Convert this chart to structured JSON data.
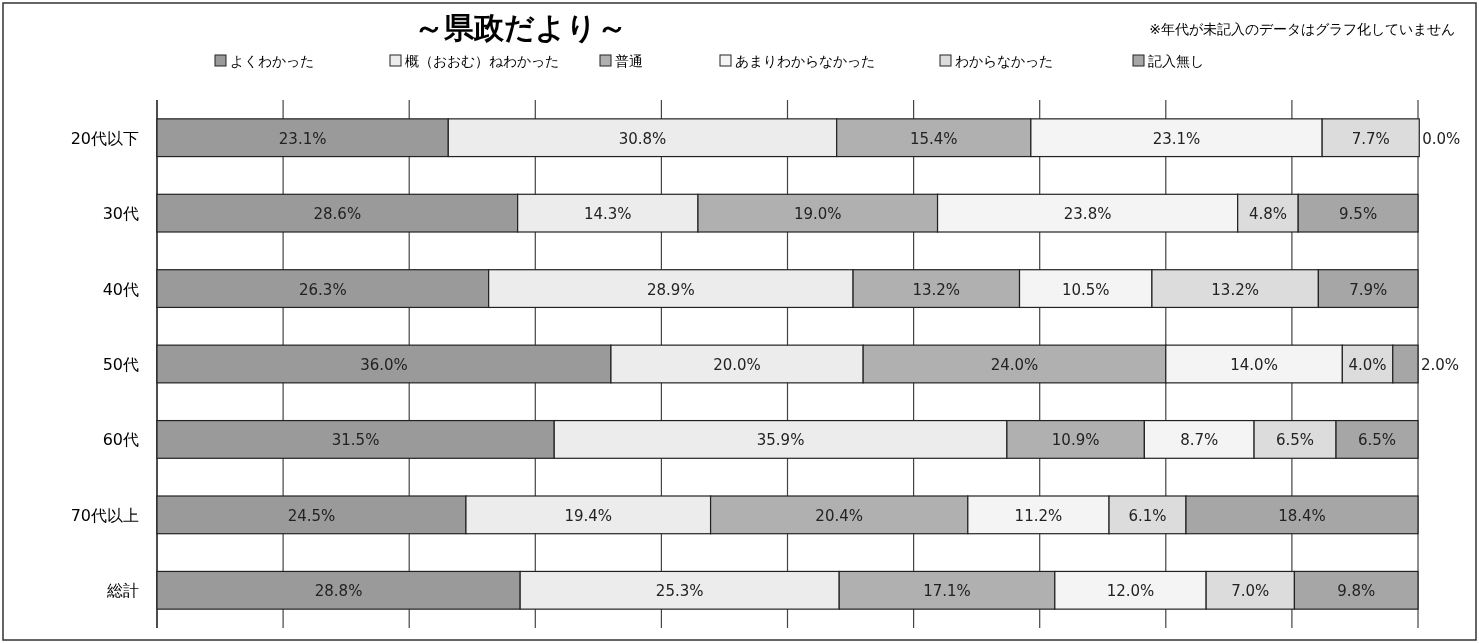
{
  "chart_data": {
    "type": "bar",
    "orientation": "horizontal",
    "stacked": true,
    "title": "～県政だより～",
    "annotations": [
      "※年代が未記入のデータはグラフ化していません"
    ],
    "categories": [
      "20代以下",
      "30代",
      "40代",
      "50代",
      "60代",
      "70代以上",
      "総計"
    ],
    "xlim": [
      0,
      100
    ],
    "xticks": [
      {
        "value": 0,
        "label": null
      },
      {
        "value": 10,
        "label": null
      },
      {
        "value": 20,
        "label": null
      },
      {
        "value": 30,
        "label": null
      },
      {
        "value": 40,
        "label": null
      },
      {
        "value": 50,
        "label": null
      },
      {
        "value": 60,
        "label": null
      },
      {
        "value": 70,
        "label": null
      },
      {
        "value": 80,
        "label": null
      },
      {
        "value": 90,
        "label": null
      },
      {
        "value": 100,
        "label": null
      }
    ],
    "grid": "x",
    "legend": "top",
    "tick_labels": "y",
    "series": [
      {
        "name": "よくわかった",
        "color": "#9a9a9a",
        "values": [
          23.1,
          28.6,
          26.3,
          36.0,
          31.5,
          24.5,
          28.8
        ],
        "value_labels": [
          "23.1%",
          "28.6%",
          "26.3%",
          "36.0%",
          "31.5%",
          "24.5%",
          "28.8%"
        ]
      },
      {
        "name": "概（おおむ）ねわかった",
        "color": "#ececec",
        "values": [
          30.8,
          14.3,
          28.9,
          20.0,
          35.9,
          19.4,
          25.3
        ],
        "value_labels": [
          "30.8%",
          "14.3%",
          "28.9%",
          "20.0%",
          "35.9%",
          "19.4%",
          "25.3%"
        ]
      },
      {
        "name": "普通",
        "color": "#b0b0b0",
        "values": [
          15.4,
          19.0,
          13.2,
          24.0,
          10.9,
          20.4,
          17.1
        ],
        "value_labels": [
          "15.4%",
          "19.0%",
          "13.2%",
          "24.0%",
          "10.9%",
          "20.4%",
          "17.1%"
        ]
      },
      {
        "name": "あまりわからなかった",
        "color": "#f4f4f4",
        "values": [
          23.1,
          23.8,
          10.5,
          14.0,
          8.7,
          11.2,
          12.0
        ],
        "value_labels": [
          "23.1%",
          "23.8%",
          "10.5%",
          "14.0%",
          "8.7%",
          "11.2%",
          "12.0%"
        ]
      },
      {
        "name": "わからなかった",
        "color": "#dcdcdc",
        "values": [
          7.7,
          4.8,
          13.2,
          4.0,
          6.5,
          6.1,
          7.0
        ],
        "value_labels": [
          "7.7%",
          "4.8%",
          "13.2%",
          "4.0%",
          "6.5%",
          "6.1%",
          "7.0%"
        ]
      },
      {
        "name": "記入無し",
        "color": "#a6a6a6",
        "values": [
          0.0,
          9.5,
          7.9,
          2.0,
          6.5,
          18.4,
          9.8
        ],
        "value_labels": [
          "0.0%",
          "9.5%",
          "7.9%",
          "2.0%",
          "6.5%",
          "18.4%",
          "9.8%"
        ]
      }
    ]
  }
}
